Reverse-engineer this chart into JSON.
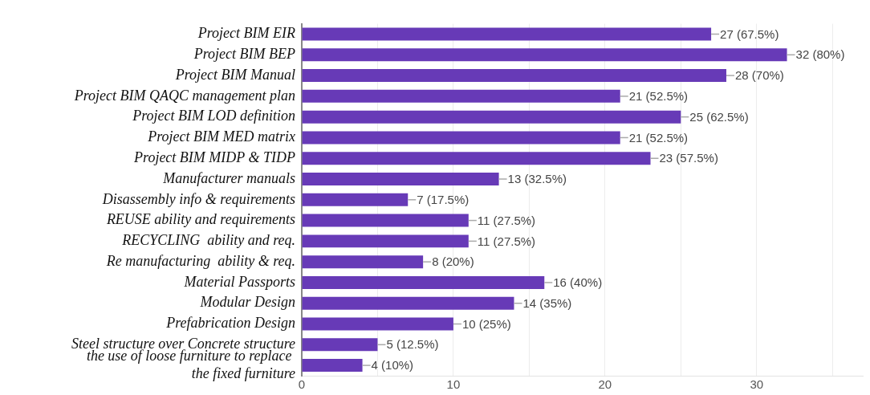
{
  "chart_data": {
    "type": "bar",
    "orientation": "horizontal",
    "categories": [
      "Project BIM EIR",
      "Project BIM BEP",
      "Project BIM Manual",
      "Project BIM QAQC management plan",
      "Project BIM LOD definition",
      "Project BIM MED matrix",
      "Project BIM MIDP & TIDP",
      "Manufacturer manuals",
      "Disassembly info & requirements",
      "REUSE ability and requirements",
      "RECYCLING  ability and req.",
      "Re manufacturing  ability & req.",
      "Material Passports",
      "Modular Design",
      "Prefabrication Design",
      "Steel structure over Concrete structure",
      "the use of loose furniture to replace \nthe fixed furniture"
    ],
    "values": [
      27,
      32,
      28,
      21,
      25,
      21,
      23,
      13,
      7,
      11,
      11,
      8,
      16,
      14,
      10,
      5,
      4
    ],
    "value_labels": [
      "27 (67.5%)",
      "32 (80%)",
      "28 (70%)",
      "21 (52.5%)",
      "25 (62.5%)",
      "21 (52.5%)",
      "23 (57.5%)",
      "13 (32.5%)",
      "7 (17.5%)",
      "11 (27.5%)",
      "11 (27.5%)",
      "8 (20%)",
      "16 (40%)",
      "14 (35%)",
      "10 (25%)",
      "5 (12.5%)",
      "4 (10%)"
    ],
    "color": "#673ab7",
    "xlim": [
      0,
      37
    ],
    "xticks": [
      0,
      {
        "value": 5,
        "label": null
      },
      10,
      {
        "value": 15,
        "label": null
      },
      20,
      {
        "value": 25,
        "label": null
      },
      30,
      {
        "value": 35,
        "label": null
      }
    ],
    "grid": "x",
    "legend": false
  }
}
